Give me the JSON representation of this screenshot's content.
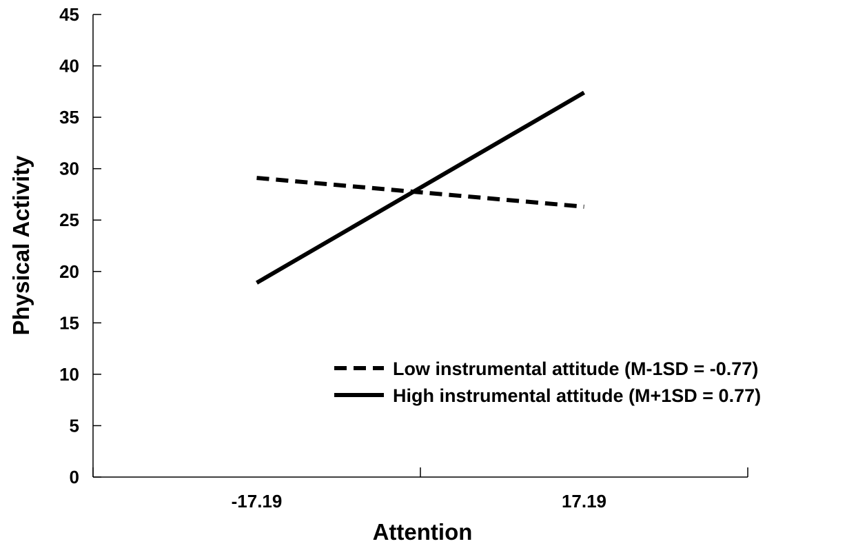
{
  "chart_data": {
    "type": "line",
    "title": "",
    "xlabel": "Attention",
    "ylabel": "Physical Activity",
    "categories": [
      "-17.19",
      "17.19"
    ],
    "ylim": [
      0,
      45
    ],
    "yticks": [
      "0",
      "5",
      "10",
      "15",
      "20",
      "25",
      "30",
      "35",
      "40",
      "45"
    ],
    "grid": false,
    "legend_position": "bottom-right",
    "series": [
      {
        "name": "Low instrumental attitude (M-1SD = -0.77)",
        "values": [
          29.1,
          26.3
        ],
        "style": "dashed",
        "color": "#000000"
      },
      {
        "name": "High instrumental attitude (M+1SD = 0.77)",
        "values": [
          18.9,
          37.4
        ],
        "style": "solid",
        "color": "#000000"
      }
    ]
  }
}
